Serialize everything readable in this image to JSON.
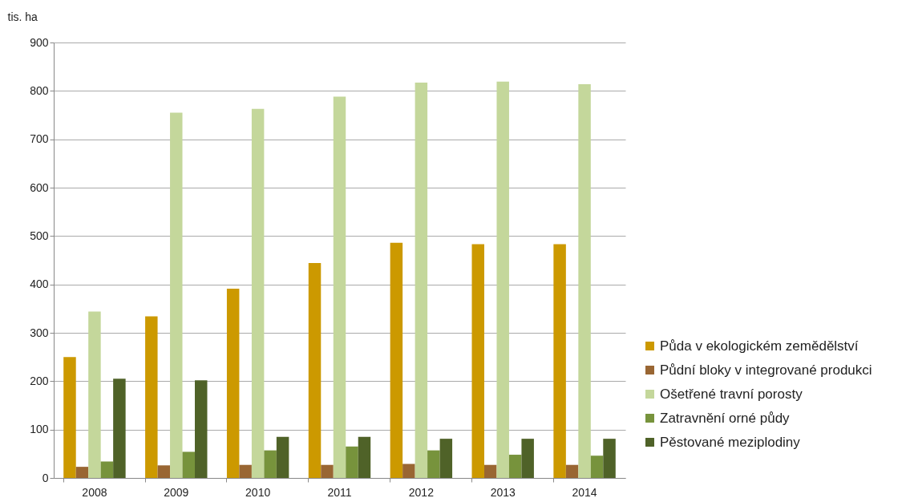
{
  "chart_data": {
    "type": "bar",
    "ylabel": "tis. ha",
    "categories": [
      "2008",
      "2009",
      "2010",
      "2011",
      "2012",
      "2013",
      "2014"
    ],
    "series": [
      {
        "name": "Půda v ekologickém zemědělství",
        "color": "#cc9900",
        "values": [
          250,
          334,
          391,
          444,
          486,
          483,
          483
        ]
      },
      {
        "name": "Půdní bloky v integrované produkci",
        "color": "#996633",
        "values": [
          23,
          26,
          27,
          27,
          29,
          27,
          27
        ]
      },
      {
        "name": "Ošetřené travní porosty",
        "color": "#c4d79b",
        "values": [
          344,
          755,
          763,
          788,
          817,
          819,
          814
        ]
      },
      {
        "name": "Zatravnění orné půdy",
        "color": "#77933c",
        "values": [
          34,
          54,
          57,
          65,
          57,
          48,
          46
        ]
      },
      {
        "name": "Pěstované meziplodiny",
        "color": "#4f6228",
        "values": [
          205,
          202,
          85,
          85,
          81,
          81,
          81
        ]
      }
    ],
    "ylim": [
      0,
      900
    ],
    "yticks": [
      0,
      100,
      200,
      300,
      400,
      500,
      600,
      700,
      800,
      900
    ],
    "grid": "y",
    "legend": "right"
  }
}
